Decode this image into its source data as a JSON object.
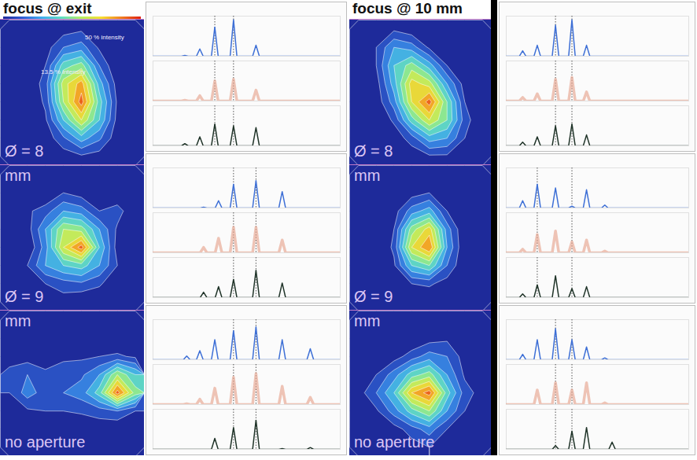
{
  "chart_data": [
    {
      "type": "contour",
      "title": "focus @ exit",
      "zlim": [
        0,
        100
      ],
      "tick_labels": false,
      "label_bottom": "Ø = 8",
      "annotations": [
        "50 % intensity",
        "13.5 % intensity"
      ],
      "cells": [
        [
          0,
          0,
          0,
          5,
          8,
          0,
          0,
          0
        ],
        [
          0,
          0,
          5,
          20,
          25,
          8,
          0,
          0
        ],
        [
          0,
          0,
          10,
          45,
          55,
          20,
          0,
          0
        ],
        [
          0,
          0,
          15,
          65,
          85,
          35,
          5,
          0
        ],
        [
          0,
          0,
          12,
          60,
          95,
          45,
          8,
          0
        ],
        [
          0,
          0,
          8,
          40,
          70,
          40,
          6,
          0
        ],
        [
          0,
          0,
          3,
          18,
          35,
          22,
          3,
          0
        ],
        [
          0,
          0,
          0,
          4,
          8,
          5,
          0,
          0
        ]
      ]
    },
    {
      "type": "contour",
      "zlim": [
        0,
        100
      ],
      "tick_labels": false,
      "label_top": "mm",
      "label_bottom": "Ø = 9",
      "cells": [
        [
          0,
          0,
          0,
          0,
          0,
          0,
          0,
          0
        ],
        [
          0,
          0,
          0,
          10,
          5,
          0,
          0,
          0
        ],
        [
          0,
          8,
          15,
          30,
          25,
          10,
          15,
          0
        ],
        [
          0,
          5,
          30,
          60,
          55,
          30,
          8,
          0
        ],
        [
          0,
          0,
          25,
          70,
          95,
          40,
          5,
          0
        ],
        [
          0,
          10,
          30,
          40,
          45,
          30,
          10,
          0
        ],
        [
          0,
          0,
          10,
          15,
          18,
          12,
          0,
          0
        ],
        [
          0,
          0,
          0,
          5,
          0,
          0,
          0,
          0
        ]
      ]
    },
    {
      "type": "contour",
      "zlim": [
        0,
        100
      ],
      "tick_labels": false,
      "label_top": "mm",
      "label_bottom": "no aperture",
      "cells": [
        [
          0,
          0,
          0,
          0,
          0,
          0,
          0,
          0
        ],
        [
          0,
          0,
          0,
          0,
          0,
          0,
          0,
          0
        ],
        [
          3,
          5,
          5,
          8,
          8,
          10,
          12,
          8
        ],
        [
          15,
          20,
          12,
          15,
          18,
          30,
          60,
          40
        ],
        [
          10,
          25,
          15,
          20,
          25,
          45,
          95,
          55
        ],
        [
          5,
          8,
          10,
          10,
          12,
          15,
          20,
          10
        ],
        [
          0,
          0,
          3,
          0,
          0,
          3,
          0,
          0
        ],
        [
          0,
          0,
          0,
          0,
          0,
          0,
          0,
          0
        ]
      ]
    },
    {
      "type": "line",
      "xlim": [
        0,
        100
      ],
      "ylim": [
        0,
        1.1
      ],
      "tick_labels": false,
      "reference_lines": [
        33,
        43
      ],
      "x": [
        17,
        25,
        33,
        43,
        55
      ],
      "series": [
        {
          "color": "#3d6fd6",
          "line_style": "solid",
          "values": [
            0.02,
            0.2,
            0.8,
            1.0,
            0.3
          ]
        },
        {
          "color": "#e6a58f",
          "line_style": "thick",
          "values": [
            0.02,
            0.15,
            0.55,
            0.6,
            0.3
          ]
        },
        {
          "color": "#1f3328",
          "line_style": "solid",
          "values": [
            0.06,
            0.25,
            0.6,
            0.55,
            0.5
          ]
        }
      ]
    },
    {
      "type": "line",
      "xlim": [
        0,
        100
      ],
      "ylim": [
        0,
        1.1
      ],
      "tick_labels": false,
      "reference_lines": [
        43,
        55
      ],
      "x": [
        27,
        35,
        43,
        55,
        69
      ],
      "series": [
        {
          "color": "#3d6fd6",
          "line_style": "solid",
          "values": [
            0.02,
            0.2,
            0.65,
            0.75,
            0.45
          ]
        },
        {
          "color": "#e6a58f",
          "line_style": "thick",
          "values": [
            0.15,
            0.4,
            0.7,
            0.7,
            0.35
          ]
        },
        {
          "color": "#1f3328",
          "line_style": "solid",
          "values": [
            0.15,
            0.3,
            0.5,
            0.75,
            0.4
          ]
        }
      ]
    },
    {
      "type": "line",
      "xlim": [
        0,
        100
      ],
      "ylim": [
        0,
        1.1
      ],
      "tick_labels": false,
      "reference_lines": [
        43,
        55
      ],
      "x": [
        18,
        25,
        33,
        43,
        55,
        69,
        84
      ],
      "series": [
        {
          "color": "#3d6fd6",
          "line_style": "solid",
          "values": [
            0.1,
            0.25,
            0.55,
            0.8,
            0.9,
            0.55,
            0.3
          ]
        },
        {
          "color": "#e6a58f",
          "line_style": "thick",
          "values": [
            0.02,
            0.15,
            0.45,
            0.75,
            0.85,
            0.5,
            0.2
          ]
        },
        {
          "color": "#1f3328",
          "line_style": "solid",
          "values": [
            0,
            0,
            0.3,
            0.6,
            0.8,
            0.02,
            0.05
          ]
        }
      ]
    },
    {
      "type": "contour",
      "title": "focus @ 10 mm",
      "zlim": [
        0,
        100
      ],
      "tick_labels": false,
      "label_bottom": "Ø = 8",
      "cells": [
        [
          0,
          5,
          8,
          3,
          0,
          0,
          0,
          0
        ],
        [
          0,
          10,
          30,
          25,
          8,
          0,
          0,
          0
        ],
        [
          0,
          10,
          40,
          55,
          35,
          10,
          0,
          0
        ],
        [
          0,
          5,
          35,
          75,
          65,
          30,
          5,
          0
        ],
        [
          0,
          3,
          25,
          70,
          95,
          50,
          10,
          0
        ],
        [
          0,
          0,
          12,
          45,
          70,
          50,
          15,
          0
        ],
        [
          0,
          0,
          3,
          15,
          35,
          30,
          10,
          0
        ],
        [
          0,
          0,
          0,
          3,
          8,
          8,
          3,
          0
        ]
      ]
    },
    {
      "type": "contour",
      "zlim": [
        0,
        100
      ],
      "tick_labels": false,
      "label_top": "mm",
      "label_bottom": "Ø = 9",
      "cells": [
        [
          0,
          0,
          0,
          0,
          0,
          0,
          0,
          0
        ],
        [
          0,
          0,
          0,
          5,
          10,
          3,
          0,
          0
        ],
        [
          0,
          0,
          5,
          25,
          35,
          10,
          0,
          0
        ],
        [
          0,
          0,
          10,
          55,
          75,
          25,
          0,
          0
        ],
        [
          0,
          0,
          12,
          70,
          90,
          30,
          0,
          0
        ],
        [
          0,
          0,
          8,
          40,
          50,
          20,
          0,
          0
        ],
        [
          0,
          0,
          3,
          10,
          12,
          5,
          0,
          0
        ],
        [
          0,
          0,
          0,
          0,
          0,
          0,
          0,
          0
        ]
      ]
    },
    {
      "type": "contour",
      "zlim": [
        0,
        100
      ],
      "tick_labels": false,
      "label_top": "mm",
      "label_bottom": "no aperture",
      "cells": [
        [
          0,
          0,
          0,
          0,
          0,
          0,
          0,
          0
        ],
        [
          0,
          0,
          0,
          0,
          5,
          8,
          0,
          0
        ],
        [
          0,
          3,
          5,
          15,
          25,
          20,
          5,
          0
        ],
        [
          0,
          10,
          25,
          45,
          55,
          30,
          8,
          0
        ],
        [
          5,
          20,
          40,
          80,
          95,
          45,
          15,
          5
        ],
        [
          0,
          8,
          25,
          45,
          60,
          30,
          10,
          0
        ],
        [
          0,
          0,
          5,
          15,
          25,
          10,
          0,
          0
        ],
        [
          0,
          0,
          0,
          5,
          10,
          0,
          0,
          0
        ]
      ]
    },
    {
      "type": "line",
      "xlim": [
        0,
        100
      ],
      "ylim": [
        0,
        1.1
      ],
      "tick_labels": false,
      "reference_lines": [
        27,
        36
      ],
      "x": [
        9,
        17,
        27,
        36,
        44
      ],
      "series": [
        {
          "color": "#3d6fd6",
          "line_style": "solid",
          "values": [
            0.15,
            0.3,
            0.85,
            1.0,
            0.3
          ]
        },
        {
          "color": "#e6a58f",
          "line_style": "thick",
          "values": [
            0.1,
            0.2,
            0.6,
            0.65,
            0.25
          ]
        },
        {
          "color": "#1f3328",
          "line_style": "solid",
          "values": [
            0.1,
            0.25,
            0.55,
            0.6,
            0.3
          ]
        }
      ]
    },
    {
      "type": "line",
      "xlim": [
        0,
        100
      ],
      "ylim": [
        0,
        1.1
      ],
      "tick_labels": false,
      "reference_lines": [
        17,
        36
      ],
      "x": [
        9,
        17,
        27,
        36,
        44,
        54
      ],
      "series": [
        {
          "color": "#3d6fd6",
          "line_style": "solid",
          "values": [
            0.2,
            0.65,
            0.55,
            0.05,
            0.5,
            0.08
          ]
        },
        {
          "color": "#e6a58f",
          "line_style": "thick",
          "values": [
            0.1,
            0.5,
            0.6,
            0.3,
            0.35,
            0.05
          ]
        },
        {
          "color": "#1f3328",
          "line_style": "solid",
          "values": [
            0.1,
            0.35,
            0.6,
            0.25,
            0.3,
            0
          ]
        }
      ]
    },
    {
      "type": "line",
      "xlim": [
        0,
        100
      ],
      "ylim": [
        0,
        1.1
      ],
      "tick_labels": false,
      "reference_lines": [
        27,
        36
      ],
      "x": [
        9,
        17,
        27,
        36,
        44,
        54,
        58
      ],
      "series": [
        {
          "color": "#3d6fd6",
          "line_style": "solid",
          "values": [
            0.15,
            0.55,
            0.85,
            0.55,
            0.35,
            0.05,
            0
          ]
        },
        {
          "color": "#e6a58f",
          "line_style": "thick",
          "values": [
            0,
            0.4,
            0.6,
            0.4,
            0.6,
            0.05,
            0
          ]
        },
        {
          "color": "#1f3328",
          "line_style": "solid",
          "values": [
            0,
            0,
            0.1,
            0.5,
            0.6,
            0,
            0.2
          ]
        }
      ]
    }
  ]
}
